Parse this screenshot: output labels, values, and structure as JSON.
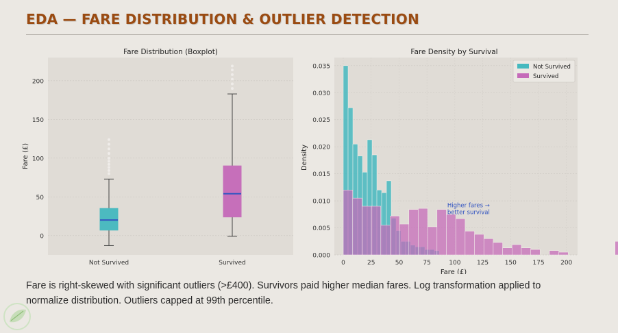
{
  "slide": {
    "title": "EDA — FARE DISTRIBUTION & OUTLIER DETECTION",
    "caption": "Fare is right-skewed with significant outliers (>£400). Survivors paid higher median fares. Log transformation applied to normalize distribution. Outliers capped at 99th percentile."
  },
  "colors": {
    "not_survived": "#45b9bf",
    "survived": "#c56ab9",
    "median_line": "#3456c0",
    "panel_bg": "#e0dcd6",
    "title": "#9a4b12",
    "annotation": "#2f52c0"
  },
  "chart_data": [
    {
      "type": "boxplot",
      "title": "Fare Distribution (Boxplot)",
      "xlabel": "",
      "ylabel": "Fare (£)",
      "ylim": [
        -25,
        230
      ],
      "yticks": [
        0,
        50,
        100,
        150,
        200
      ],
      "grid": true,
      "categories": [
        "Not Survived",
        "Survived"
      ],
      "boxes": [
        {
          "name": "Not Survived",
          "whisker_low": -13,
          "q1": 7,
          "median": 20,
          "q3": 35,
          "whisker_high": 73,
          "outliers": [
            80,
            84,
            88,
            92,
            96,
            100,
            106,
            112,
            118,
            124
          ]
        },
        {
          "name": "Survived",
          "whisker_low": -1,
          "q1": 24,
          "median": 54,
          "q3": 90,
          "whisker_high": 183,
          "outliers": [
            190,
            196,
            202,
            208,
            214,
            219
          ]
        }
      ]
    },
    {
      "type": "histogram",
      "title": "Fare Density by Survival",
      "xlabel": "Fare (£)",
      "ylabel": "Density",
      "xlim": [
        -8,
        210
      ],
      "ylim": [
        0,
        0.0365
      ],
      "xticks": [
        0,
        25,
        50,
        75,
        100,
        125,
        150,
        175,
        200
      ],
      "yticks": [
        0.0,
        0.005,
        0.01,
        0.015,
        0.02,
        0.025,
        0.03,
        0.035
      ],
      "ytick_labels": [
        "0.000",
        "0.005",
        "0.010",
        "0.015",
        "0.020",
        "0.025",
        "0.030",
        "0.035"
      ],
      "grid": true,
      "legend_position": "top-right",
      "series": [
        {
          "name": "Not Survived",
          "bin_start": 0,
          "bin_width": 4.3,
          "values": [
            0.035,
            0.0272,
            0.0205,
            0.0183,
            0.0153,
            0.0213,
            0.0185,
            0.012,
            0.0115,
            0.0137,
            0.0068,
            0.0045,
            0.0025,
            0.0025,
            0.0018,
            0.0015,
            0.0015,
            0.001,
            0.001,
            0.0008
          ]
        },
        {
          "name": "Survived",
          "bin_start": 0,
          "bin_width": 8.4,
          "values": [
            0.012,
            0.0105,
            0.009,
            0.009,
            0.0055,
            0.0072,
            0.0057,
            0.0084,
            0.0086,
            0.0052,
            0.0084,
            0.0075,
            0.0067,
            0.0044,
            0.0038,
            0.003,
            0.0023,
            0.0013,
            0.0019,
            0.0013,
            0.001,
            0,
            0.0008,
            0.0005,
            0,
            0,
            0,
            0,
            0,
            0.0025
          ]
        }
      ],
      "annotation": {
        "text_line1": "Higher fares →",
        "text_line2": "better survival",
        "x": 100,
        "y": 0.0088
      }
    }
  ]
}
